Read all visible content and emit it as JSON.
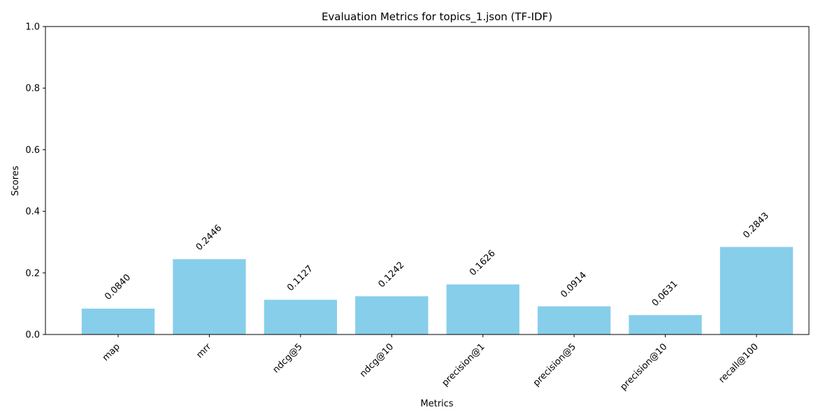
{
  "chart_data": {
    "type": "bar",
    "title": "Evaluation Metrics for topics_1.json (TF-IDF)",
    "xlabel": "Metrics",
    "ylabel": "Scores",
    "ylim": [
      0,
      1
    ],
    "yticks": [
      "0.0",
      "0.2",
      "0.4",
      "0.6",
      "0.8",
      "1.0"
    ],
    "categories": [
      "map",
      "mrr",
      "ndcg@5",
      "ndcg@10",
      "precision@1",
      "precision@5",
      "precision@10",
      "recall@100"
    ],
    "values": [
      0.084,
      0.2446,
      0.1127,
      0.1242,
      0.1626,
      0.0914,
      0.0631,
      0.2843
    ],
    "value_labels": [
      "0.0840",
      "0.2446",
      "0.1127",
      "0.1242",
      "0.1626",
      "0.0914",
      "0.0631",
      "0.2843"
    ],
    "bar_color": "#87ceeb",
    "grid": false,
    "legend": "none"
  }
}
